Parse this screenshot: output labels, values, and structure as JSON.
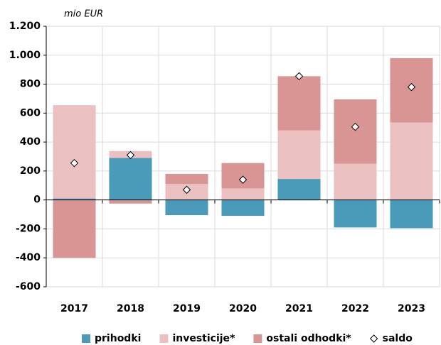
{
  "chart_data": {
    "type": "bar",
    "stacked": true,
    "subtitle": "mio EUR",
    "categories": [
      "2017",
      "2018",
      "2019",
      "2020",
      "2021",
      "2022",
      "2023"
    ],
    "series": [
      {
        "name": "prihodki",
        "color": "#4a9aba",
        "values": [
          10,
          290,
          -105,
          -110,
          145,
          -190,
          -195
        ]
      },
      {
        "name": "investicije*",
        "color": "#ebc0c0",
        "values": [
          645,
          48,
          110,
          80,
          335,
          250,
          535
        ]
      },
      {
        "name": "ostali odhodki*",
        "color": "#d99494",
        "values": [
          -400,
          -25,
          70,
          175,
          375,
          445,
          445
        ]
      },
      {
        "name": "saldo",
        "type": "scatter",
        "marker": "diamond",
        "color": "#ffffff",
        "values": [
          255,
          310,
          70,
          140,
          855,
          505,
          780
        ]
      }
    ],
    "ylim": [
      -600,
      1200
    ],
    "yticks": [
      -600,
      -400,
      -200,
      0,
      200,
      400,
      600,
      800,
      {
        "value": 1000,
        "label": "1.000"
      },
      {
        "value": 1200,
        "label": "1.200"
      }
    ],
    "grid": true,
    "legend": "bottom"
  }
}
